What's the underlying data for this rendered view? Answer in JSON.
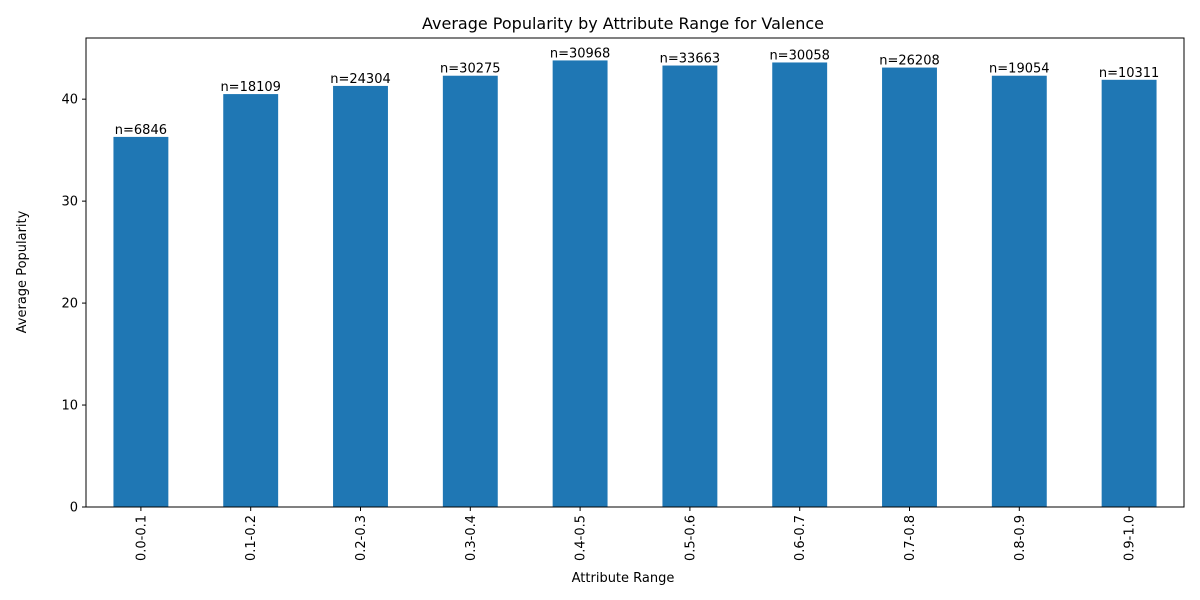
{
  "chart_data": {
    "type": "bar",
    "title": "Average Popularity by Attribute Range for Valence",
    "xlabel": "Attribute Range",
    "ylabel": "Average Popularity",
    "categories": [
      "0.0-0.1",
      "0.1-0.2",
      "0.2-0.3",
      "0.3-0.4",
      "0.4-0.5",
      "0.5-0.6",
      "0.6-0.7",
      "0.7-0.8",
      "0.8-0.9",
      "0.9-1.0"
    ],
    "values": [
      36.3,
      40.5,
      41.3,
      42.3,
      43.8,
      43.3,
      43.6,
      43.1,
      42.3,
      41.9
    ],
    "bar_labels": [
      "n=6846",
      "n=18109",
      "n=24304",
      "n=30275",
      "n=30968",
      "n=33663",
      "n=30058",
      "n=26208",
      "n=19054",
      "n=10311"
    ],
    "yticks": [
      0,
      10,
      20,
      30,
      40
    ],
    "ylim": [
      0,
      46
    ],
    "bar_color": "#1f77b4",
    "grid": false,
    "legend": "none",
    "xtick_rotation": "vertical"
  }
}
